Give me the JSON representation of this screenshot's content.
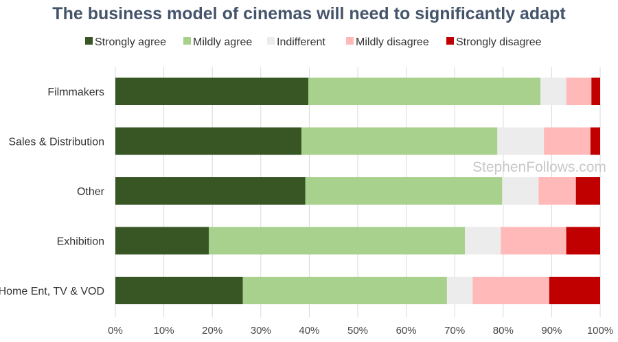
{
  "chart_data": {
    "type": "bar",
    "orientation": "horizontal",
    "stacked": true,
    "title": "The business model of cinemas will need to significantly adapt",
    "watermark": "StephenFollows.com",
    "categories": [
      "Filmmakers",
      "Sales & Distribution",
      "Other",
      "Exhibition",
      "Home Ent, TV & VOD"
    ],
    "series": [
      {
        "name": "Strongly agree",
        "color": "#375623",
        "values": [
          39.8,
          38.4,
          39.2,
          19.3,
          26.3
        ]
      },
      {
        "name": "Mildly agree",
        "color": "#a9d18e",
        "values": [
          47.9,
          40.4,
          40.6,
          52.8,
          42.1
        ]
      },
      {
        "name": "Indifferent",
        "color": "#ececec",
        "values": [
          5.3,
          9.6,
          7.5,
          7.4,
          5.3
        ]
      },
      {
        "name": "Mildly disagree",
        "color": "#ffb9b9",
        "values": [
          5.2,
          9.6,
          7.7,
          13.5,
          15.8
        ]
      },
      {
        "name": "Strongly disagree",
        "color": "#c00000",
        "values": [
          1.8,
          2.0,
          5.0,
          7.0,
          10.5
        ]
      }
    ],
    "xlim": [
      0,
      100
    ],
    "xticks": [
      "0%",
      "10%",
      "20%",
      "30%",
      "40%",
      "50%",
      "60%",
      "70%",
      "80%",
      "90%",
      "100%"
    ],
    "legend_position": "top",
    "grid": "vertical"
  }
}
